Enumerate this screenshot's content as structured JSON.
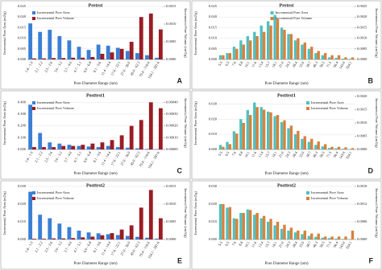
{
  "chart_data": [
    {
      "type": "bar",
      "title": "Pretest",
      "annotation": "A",
      "x_label": "Pore Diameter Range (nm)",
      "y_label": "Incremental Pore Area (m2/g)",
      "y2_label": "Incremental Pore Volume (cm3/g)",
      "legend": "upper left",
      "categories": [
        "1.8 - 1.9",
        "2.1 - 2.2",
        "2.5 - 2.6",
        "3.0 - 3.2",
        "3.7 - 4.0",
        "4.7 - 5.1",
        "6.0 - 6.8",
        "8.1 - 9.6",
        "11.4 - 14.4",
        "17.6 - 22.1",
        "27.0 - 36.0",
        "45.0 - 62.3",
        "79.4 - 116.6",
        "154.1 - 281.6"
      ],
      "series": [
        {
          "name": "Incremental Pore Area",
          "color": "#3a7fd5",
          "values": [
            0.017,
            0.013,
            0.014,
            0.011,
            0.009,
            0.006,
            0.0045,
            0.007,
            0.0065,
            0.0055,
            0.004,
            0.003,
            0.002,
            0.0008
          ]
        },
        {
          "name": "Incremental Pore Volume",
          "color": "#9b1c24",
          "axis": "y2",
          "values": [
            3e-05,
            3e-05,
            4e-05,
            4e-05,
            5e-05,
            5e-05,
            7e-05,
            0.00016,
            0.0002,
            0.0003,
            0.0005,
            0.0012,
            0.0013,
            0.00085
          ]
        }
      ],
      "ylim": [
        0,
        0.025
      ],
      "yticks": [
        {
          "value": 0,
          "label": "0.000"
        },
        {
          "value": 0.005,
          "label": "0.005"
        },
        {
          "value": 0.01,
          "label": "0.010"
        },
        {
          "value": 0.015,
          "label": "0.015"
        },
        {
          "value": 0.02,
          "label": "0.020"
        },
        {
          "value": 0.025,
          "label": "0.025"
        }
      ],
      "y2lim": [
        0,
        0.0015
      ],
      "y2ticks": [
        {
          "value": 0,
          "label": "0.0000"
        },
        {
          "value": 0.0005,
          "label": "0.0005"
        },
        {
          "value": 0.001,
          "label": "0.0010"
        },
        {
          "value": 0.0015,
          "label": "0.0015"
        }
      ]
    },
    {
      "type": "bar",
      "title": "Pretest",
      "annotation": "B",
      "x_label": "Pore Diameter Range (nm)",
      "y_label": "Incremental Pore Area (m2/g)",
      "y2_label": "Incremental Pore Volume (cm3/g)",
      "legend": "upper center",
      "categories": [
        "5.5",
        "6.5",
        "7.6",
        "8.8",
        "10.1",
        "11.6",
        "13.4",
        "15.7",
        "18.1",
        "21.0",
        "24.3",
        "28.4",
        "33.0",
        "38.7",
        "46.3",
        "56.5",
        "71.5",
        "96.4",
        "143.0",
        "554.1"
      ],
      "series": [
        {
          "name": "Incremental Pore Area",
          "color": "#4fc1c0",
          "values": [
            0.002,
            0.003,
            0.006,
            0.009,
            0.011,
            0.013,
            0.016,
            0.018,
            0.021,
            0.015,
            0.012,
            0.009,
            0.007,
            0.005,
            0.003,
            0.002,
            0.001,
            0.0008,
            0.0004,
            0.0003
          ]
        },
        {
          "name": "Incremental Pore Volume",
          "color": "#d9803a",
          "axis": "y2",
          "values": [
            0.0002,
            0.0003,
            0.0005,
            0.0007,
            0.0009,
            0.0011,
            0.0013,
            0.0016,
            0.0019,
            0.0014,
            0.0012,
            0.001,
            0.0008,
            0.0006,
            0.0004,
            0.0003,
            0.0002,
            0.0002,
            0.0001,
            0.0001
          ]
        }
      ],
      "ylim": [
        0,
        0.025
      ],
      "yticks": [
        {
          "value": 0,
          "label": "0.000"
        },
        {
          "value": 0.005,
          "label": "0.005"
        },
        {
          "value": 0.01,
          "label": "0.010"
        },
        {
          "value": 0.015,
          "label": "0.015"
        },
        {
          "value": 0.02,
          "label": "0.020"
        },
        {
          "value": 0.025,
          "label": "0.025"
        }
      ],
      "y2lim": [
        0,
        0.0025
      ],
      "y2ticks": [
        {
          "value": 0,
          "label": "0.0000"
        },
        {
          "value": 0.0005,
          "label": "0.0005"
        },
        {
          "value": 0.001,
          "label": "0.0010"
        },
        {
          "value": 0.0015,
          "label": "0.0015"
        },
        {
          "value": 0.002,
          "label": "0.0020"
        },
        {
          "value": 0.0025,
          "label": "0.0025"
        }
      ]
    },
    {
      "type": "bar",
      "title": "Posttest1",
      "annotation": "C",
      "x_label": "Pore Diameter Range (nm)",
      "y_label": "Incremental Pore Area (m2/g)",
      "y2_label": "Incremental Pore Volume (cm3/g)",
      "legend": "upper left",
      "categories": [
        "1.8 - 1.9",
        "2.1 - 2.2",
        "2.5 - 2.6",
        "3.0 - 3.2",
        "3.7 - 4.0",
        "4.7 - 5.1",
        "6.0 - 6.8",
        "8.1 - 9.6",
        "11.4 - 14.4",
        "17.6 - 22.1",
        "27.0 - 36.0",
        "45.0 - 62.3",
        "79.4 - 116.6",
        "154.1 - 281.6"
      ],
      "series": [
        {
          "name": "Incremental Pore Area",
          "color": "#3a7fd5",
          "values": [
            0.38,
            0.14,
            0.06,
            0.05,
            0.04,
            0.03,
            0.025,
            0.02,
            0.03,
            0.02,
            0.015,
            0.01,
            0.005,
            0.003
          ]
        },
        {
          "name": "Incremental Pore Volume",
          "color": "#9b1c24",
          "axis": "y2",
          "values": [
            2e-05,
            2e-05,
            2e-05,
            3e-05,
            3e-05,
            4e-05,
            5e-05,
            6e-05,
            8e-05,
            0.00012,
            0.0002,
            0.00025,
            0.0004,
            0.00035
          ]
        }
      ],
      "ylim": [
        0,
        0.45
      ],
      "yticks": [
        {
          "value": 0,
          "label": "0.000"
        },
        {
          "value": 0.1,
          "label": "0.100"
        },
        {
          "value": 0.2,
          "label": "0.200"
        },
        {
          "value": 0.3,
          "label": "0.300"
        },
        {
          "value": 0.4,
          "label": "0.400"
        }
      ],
      "y2lim": [
        0,
        0.00045
      ],
      "y2ticks": [
        {
          "value": 0,
          "label": "0.00000"
        },
        {
          "value": 0.0001,
          "label": "0.00010"
        },
        {
          "value": 0.0002,
          "label": "0.00020"
        },
        {
          "value": 0.0003,
          "label": "0.00030"
        },
        {
          "value": 0.0004,
          "label": "0.00040"
        }
      ]
    },
    {
      "type": "bar",
      "title": "Posttest1",
      "annotation": "D",
      "x_label": "Pore Diameter Range (nm)",
      "y_label": "Incremental Pore Area (m2/g)",
      "y2_label": "Incremental Pore Volume (cm3/g)",
      "legend": "upper right",
      "categories": [
        "5.5",
        "6.5",
        "7.6",
        "8.8",
        "10.1",
        "11.6",
        "13.4",
        "15.7",
        "18.1",
        "21.0",
        "24.3",
        "28.4",
        "33.0",
        "38.7",
        "46.3",
        "56.5",
        "71.5",
        "96.4",
        "143.0",
        "554.1"
      ],
      "series": [
        {
          "name": "Incremental Pore Area",
          "color": "#4fc1c0",
          "values": [
            0.003,
            0.005,
            0.012,
            0.02,
            0.026,
            0.031,
            0.028,
            0.025,
            0.022,
            0.018,
            0.014,
            0.01,
            0.007,
            0.005,
            0.003,
            0.002,
            0.001,
            0.0008,
            0.0005,
            0.0003
          ]
        },
        {
          "name": "Incremental Pore Volume",
          "color": "#d9803a",
          "axis": "y2",
          "values": [
            0.0001,
            0.0002,
            0.0006,
            0.001,
            0.0013,
            0.0016,
            0.0015,
            0.0014,
            0.0013,
            0.0011,
            0.0009,
            0.0007,
            0.0005,
            0.0004,
            0.0003,
            0.0002,
            0.0001,
            0.0001,
            8e-05,
            5e-05
          ]
        }
      ],
      "ylim": [
        0,
        0.035
      ],
      "yticks": [
        {
          "value": 0,
          "label": "0.000"
        },
        {
          "value": 0.01,
          "label": "0.010"
        },
        {
          "value": 0.02,
          "label": "0.020"
        },
        {
          "value": 0.03,
          "label": "0.030"
        }
      ],
      "y2lim": [
        0,
        0.002
      ],
      "y2ticks": [
        {
          "value": 0,
          "label": "0.0000"
        },
        {
          "value": 0.0005,
          "label": "0.0005"
        },
        {
          "value": 0.001,
          "label": "0.0010"
        },
        {
          "value": 0.0015,
          "label": "0.0015"
        },
        {
          "value": 0.002,
          "label": "0.0020"
        }
      ]
    },
    {
      "type": "bar",
      "title": "Posttest2",
      "annotation": "E",
      "x_label": "Pore Diameter Range (nm)",
      "y_label": "Incremental Pore Area (m2/g)",
      "y2_label": "Incremental Pore Volume (cm3/g)",
      "legend": "upper left",
      "categories": [
        "1.8 - 1.9",
        "2.1 - 2.2",
        "2.5 - 2.6",
        "3.0 - 3.2",
        "3.7 - 4.0",
        "4.7 - 5.1",
        "6.0 - 6.8",
        "8.1 - 9.6",
        "11.4 - 14.4",
        "17.6 - 22.1",
        "27.0 - 36.0",
        "45.0 - 62.3",
        "79.4 - 116.6",
        "154.1 - 281.6"
      ],
      "series": [
        {
          "name": "Incremental Pore Area",
          "color": "#3a7fd5",
          "values": [
            0.027,
            0.014,
            0.012,
            0.009,
            0.007,
            0.005,
            0.004,
            0.0035,
            0.003,
            0.0025,
            0.002,
            0.0015,
            0.001,
            0.0005
          ]
        },
        {
          "name": "Incremental Pore Volume",
          "color": "#9b1c24",
          "axis": "y2",
          "values": [
            2e-05,
            2e-05,
            3e-05,
            3e-05,
            4e-05,
            6e-05,
            8e-05,
            0.00012,
            0.00018,
            0.00028,
            0.0004,
            0.0009,
            0.0014,
            0.0006
          ]
        }
      ],
      "ylim": [
        0,
        0.03
      ],
      "yticks": [
        {
          "value": 0,
          "label": "0.000"
        },
        {
          "value": 0.01,
          "label": "0.010"
        },
        {
          "value": 0.02,
          "label": "0.020"
        },
        {
          "value": 0.03,
          "label": "0.030"
        }
      ],
      "y2lim": [
        0,
        0.0015
      ],
      "y2ticks": [
        {
          "value": 0,
          "label": "0.0000"
        },
        {
          "value": 0.0005,
          "label": "0.0005"
        },
        {
          "value": 0.001,
          "label": "0.0010"
        },
        {
          "value": 0.0015,
          "label": "0.0015"
        }
      ]
    },
    {
      "type": "bar",
      "title": "Posttest2",
      "annotation": "F",
      "x_label": "Pore Diameter Range (nm)",
      "y_label": "Incremental Pore Area (m2/g)",
      "y2_label": "Incremental Pore Volume (cm3/g)",
      "legend": "upper right",
      "categories": [
        "5.5",
        "6.5",
        "7.6",
        "8.8",
        "10.1",
        "11.6",
        "13.4",
        "15.7",
        "18.1",
        "21.0",
        "24.3",
        "28.4",
        "33.0",
        "38.7",
        "46.3",
        "56.5",
        "71.5",
        "96.4",
        "143.0",
        "554.1"
      ],
      "series": [
        {
          "name": "Incremental Pore Area",
          "color": "#4fc1c0",
          "values": [
            0.02,
            0.018,
            0.012,
            0.015,
            0.017,
            0.014,
            0.012,
            0.01,
            0.008,
            0.006,
            0.005,
            0.004,
            0.003,
            0.002,
            0.0015,
            0.001,
            0.0008,
            0.0005,
            0.0003,
            0.0002
          ]
        },
        {
          "name": "Incremental Pore Volume",
          "color": "#d9803a",
          "axis": "y2",
          "values": [
            0.0012,
            0.0011,
            0.0007,
            0.0009,
            0.001,
            0.0009,
            0.0008,
            0.0007,
            0.0006,
            0.0005,
            0.0004,
            0.0003,
            0.0003,
            0.0002,
            0.0002,
            0.0001,
            0.0001,
            0.0001,
            0.0001,
            0.0003
          ]
        }
      ],
      "ylim": [
        0,
        0.03
      ],
      "yticks": [
        {
          "value": 0,
          "label": "0.000"
        },
        {
          "value": 0.01,
          "label": "0.010"
        },
        {
          "value": 0.02,
          "label": "0.020"
        },
        {
          "value": 0.03,
          "label": "0.030"
        }
      ],
      "y2lim": [
        0,
        0.0018
      ],
      "y2ticks": [
        {
          "value": 0,
          "label": "0.0000"
        },
        {
          "value": 0.0006,
          "label": "0.0006"
        },
        {
          "value": 0.0012,
          "label": "0.0012"
        },
        {
          "value": 0.0018,
          "label": "0.0018"
        }
      ]
    }
  ]
}
